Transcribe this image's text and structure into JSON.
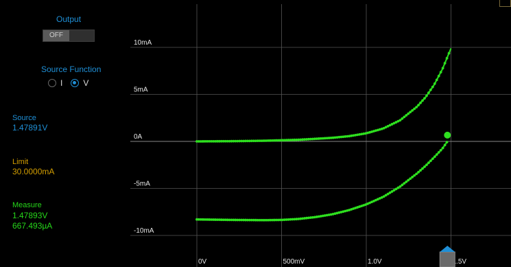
{
  "output": {
    "title": "Output",
    "toggle_label": "OFF"
  },
  "source_function": {
    "title": "Source Function",
    "options": [
      "I",
      "V"
    ],
    "selected": "V"
  },
  "readouts": {
    "source_label": "Source",
    "source_value": "1.47891V",
    "limit_label": "Limit",
    "limit_value": "30.0000mA",
    "measure_label": "Measure",
    "measure_voltage": "1.47893V",
    "measure_current": "667.493µA"
  },
  "colors": {
    "accent": "#1f8fd6",
    "limit": "#d39e00",
    "measure": "#26d61a"
  },
  "chart_data": {
    "type": "scatter",
    "x_ticks": [
      "0V",
      "500mV",
      "1.0V",
      "1.5V"
    ],
    "y_ticks": [
      "10mA",
      "5mA",
      "0A",
      "-5mA",
      "-10mA"
    ],
    "xlim": [
      0,
      1.9
    ],
    "ylim": [
      -11.8,
      14.6
    ],
    "grid": true,
    "series": [
      {
        "points": [
          [
            0,
            0
          ],
          [
            0.2,
            0.02
          ],
          [
            0.4,
            0.07
          ],
          [
            0.6,
            0.17
          ],
          [
            0.8,
            0.38
          ],
          [
            0.9,
            0.56
          ],
          [
            1.0,
            0.86
          ],
          [
            1.1,
            1.37
          ],
          [
            1.2,
            2.25
          ],
          [
            1.3,
            3.7
          ],
          [
            1.35,
            4.7
          ],
          [
            1.4,
            6.0
          ],
          [
            1.45,
            7.7
          ],
          [
            1.5,
            9.9
          ]
        ]
      },
      {
        "points": [
          [
            0,
            -8.3
          ],
          [
            0.2,
            -8.35
          ],
          [
            0.4,
            -8.38
          ],
          [
            0.5,
            -8.35
          ],
          [
            0.6,
            -8.25
          ],
          [
            0.7,
            -8.05
          ],
          [
            0.8,
            -7.75
          ],
          [
            0.9,
            -7.3
          ],
          [
            1.0,
            -6.7
          ],
          [
            1.1,
            -5.9
          ],
          [
            1.2,
            -4.8
          ],
          [
            1.3,
            -3.4
          ],
          [
            1.35,
            -2.6
          ],
          [
            1.4,
            -1.7
          ],
          [
            1.45,
            -0.75
          ],
          [
            1.479,
            0.0
          ]
        ]
      }
    ],
    "current_point": {
      "x": 1.47893,
      "y": 0.667
    },
    "cursor_x": 1.47891
  }
}
